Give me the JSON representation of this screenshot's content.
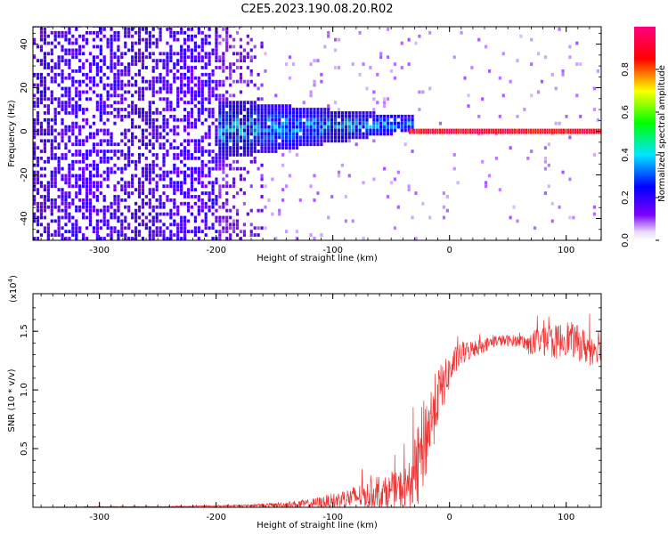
{
  "title": "C2E5.2023.190.08.20.R02",
  "chart_data": [
    {
      "type": "heatmap",
      "title": "C2E5.2023.190.08.20.R02",
      "xlabel": "Height of straight line (km)",
      "ylabel": "Frequency (Hz)",
      "xlim": [
        -357,
        130
      ],
      "ylim": [
        -50,
        48
      ],
      "xticks": [
        "-300",
        "-200",
        "-100",
        "0",
        "100"
      ],
      "yticks": [
        "40",
        "20",
        "0",
        "-20",
        "-40"
      ],
      "colorbar": {
        "label": "Normalized spectral amplitude",
        "range": [
          0,
          1
        ],
        "ticks": [
          "0.0",
          "0.2",
          "0.4",
          "0.6",
          "0.8"
        ],
        "colormap": "rainbow (white-violet-blue-cyan-green-yellow-red-magenta)"
      },
      "regions": [
        {
          "x_range": [
            -357,
            -160
          ],
          "freq_range": [
            -50,
            48
          ],
          "amplitude": "0.1-0.2",
          "description": "broadband noise"
        },
        {
          "x_range": [
            -200,
            -30
          ],
          "freq_range": [
            -15,
            15
          ],
          "amplitude": "0.2-0.5",
          "description": "signal band"
        },
        {
          "x_range": [
            -30,
            130
          ],
          "freq_range": [
            -2,
            2
          ],
          "amplitude": "0.8-1.0",
          "description": "narrow line at 0 Hz"
        }
      ],
      "grid": false
    },
    {
      "type": "line",
      "xlabel": "Height of straight line (km)",
      "ylabel": "SNR (10 * v/v)",
      "y_multiplier": "(x10",
      "y_multiplier_exp": "4",
      "y_multiplier_close": ")",
      "xlim": [
        -357,
        130
      ],
      "ylim": [
        0,
        1.82
      ],
      "xticks": [
        "-300",
        "-200",
        "-100",
        "0",
        "100"
      ],
      "yticks": [
        "0.5",
        "1.0",
        "1.5"
      ],
      "color": "#ee3333",
      "series": [
        {
          "x": [
            -357,
            -300,
            -250,
            -200,
            -170,
            -150,
            -120,
            -100,
            -80,
            -60,
            -45,
            -35,
            -28,
            -22,
            -18,
            -14,
            -10,
            -5,
            0,
            5,
            10,
            20,
            30,
            40,
            60,
            70,
            80,
            90,
            100,
            110,
            120,
            130
          ],
          "values": [
            0.0,
            0.005,
            0.005,
            0.01,
            0.015,
            0.02,
            0.03,
            0.05,
            0.09,
            0.12,
            0.15,
            0.18,
            0.3,
            0.55,
            0.68,
            0.8,
            0.95,
            1.05,
            1.15,
            1.25,
            1.3,
            1.35,
            1.38,
            1.42,
            1.42,
            1.38,
            1.45,
            1.4,
            1.45,
            1.4,
            1.35,
            1.4
          ],
          "noise": [
            0.0,
            0.003,
            0.003,
            0.006,
            0.01,
            0.02,
            0.04,
            0.07,
            0.1,
            0.12,
            0.15,
            0.2,
            0.35,
            0.4,
            0.35,
            0.3,
            0.25,
            0.2,
            0.15,
            0.12,
            0.1,
            0.08,
            0.06,
            0.05,
            0.05,
            0.1,
            0.15,
            0.15,
            0.15,
            0.15,
            0.15,
            0.15
          ]
        }
      ],
      "grid": false
    }
  ]
}
